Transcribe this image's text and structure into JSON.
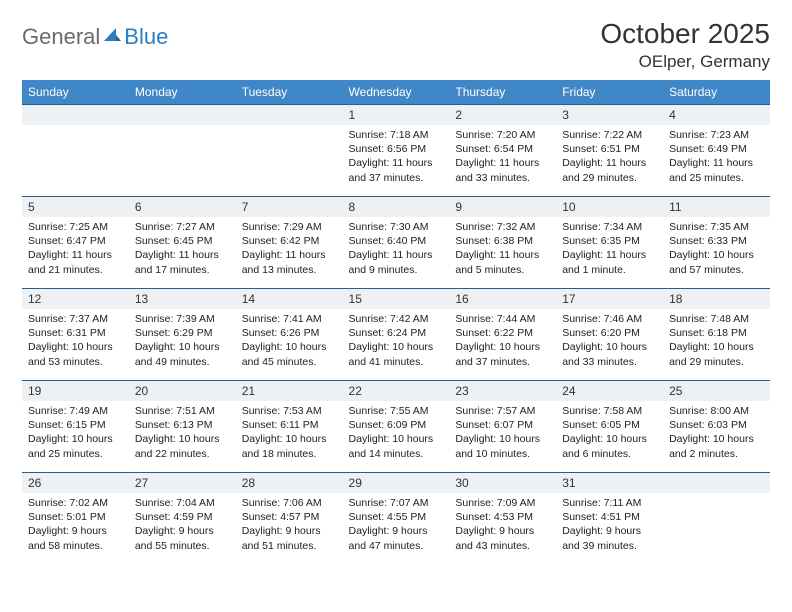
{
  "logo": {
    "text1": "General",
    "text2": "Blue"
  },
  "title": "October 2025",
  "location": "OElper, Germany",
  "colors": {
    "header_bg": "#3f87c7",
    "header_text": "#ffffff",
    "cell_border": "#2a5d8f",
    "daynum_bg": "#eef1f4",
    "title_text": "#333333",
    "logo_gray": "#6b6b6b",
    "logo_blue": "#2a7fc4"
  },
  "day_names": [
    "Sunday",
    "Monday",
    "Tuesday",
    "Wednesday",
    "Thursday",
    "Friday",
    "Saturday"
  ],
  "weeks": [
    [
      {
        "n": "",
        "sr": "",
        "ss": "",
        "dl": ""
      },
      {
        "n": "",
        "sr": "",
        "ss": "",
        "dl": ""
      },
      {
        "n": "",
        "sr": "",
        "ss": "",
        "dl": ""
      },
      {
        "n": "1",
        "sr": "Sunrise: 7:18 AM",
        "ss": "Sunset: 6:56 PM",
        "dl": "Daylight: 11 hours and 37 minutes."
      },
      {
        "n": "2",
        "sr": "Sunrise: 7:20 AM",
        "ss": "Sunset: 6:54 PM",
        "dl": "Daylight: 11 hours and 33 minutes."
      },
      {
        "n": "3",
        "sr": "Sunrise: 7:22 AM",
        "ss": "Sunset: 6:51 PM",
        "dl": "Daylight: 11 hours and 29 minutes."
      },
      {
        "n": "4",
        "sr": "Sunrise: 7:23 AM",
        "ss": "Sunset: 6:49 PM",
        "dl": "Daylight: 11 hours and 25 minutes."
      }
    ],
    [
      {
        "n": "5",
        "sr": "Sunrise: 7:25 AM",
        "ss": "Sunset: 6:47 PM",
        "dl": "Daylight: 11 hours and 21 minutes."
      },
      {
        "n": "6",
        "sr": "Sunrise: 7:27 AM",
        "ss": "Sunset: 6:45 PM",
        "dl": "Daylight: 11 hours and 17 minutes."
      },
      {
        "n": "7",
        "sr": "Sunrise: 7:29 AM",
        "ss": "Sunset: 6:42 PM",
        "dl": "Daylight: 11 hours and 13 minutes."
      },
      {
        "n": "8",
        "sr": "Sunrise: 7:30 AM",
        "ss": "Sunset: 6:40 PM",
        "dl": "Daylight: 11 hours and 9 minutes."
      },
      {
        "n": "9",
        "sr": "Sunrise: 7:32 AM",
        "ss": "Sunset: 6:38 PM",
        "dl": "Daylight: 11 hours and 5 minutes."
      },
      {
        "n": "10",
        "sr": "Sunrise: 7:34 AM",
        "ss": "Sunset: 6:35 PM",
        "dl": "Daylight: 11 hours and 1 minute."
      },
      {
        "n": "11",
        "sr": "Sunrise: 7:35 AM",
        "ss": "Sunset: 6:33 PM",
        "dl": "Daylight: 10 hours and 57 minutes."
      }
    ],
    [
      {
        "n": "12",
        "sr": "Sunrise: 7:37 AM",
        "ss": "Sunset: 6:31 PM",
        "dl": "Daylight: 10 hours and 53 minutes."
      },
      {
        "n": "13",
        "sr": "Sunrise: 7:39 AM",
        "ss": "Sunset: 6:29 PM",
        "dl": "Daylight: 10 hours and 49 minutes."
      },
      {
        "n": "14",
        "sr": "Sunrise: 7:41 AM",
        "ss": "Sunset: 6:26 PM",
        "dl": "Daylight: 10 hours and 45 minutes."
      },
      {
        "n": "15",
        "sr": "Sunrise: 7:42 AM",
        "ss": "Sunset: 6:24 PM",
        "dl": "Daylight: 10 hours and 41 minutes."
      },
      {
        "n": "16",
        "sr": "Sunrise: 7:44 AM",
        "ss": "Sunset: 6:22 PM",
        "dl": "Daylight: 10 hours and 37 minutes."
      },
      {
        "n": "17",
        "sr": "Sunrise: 7:46 AM",
        "ss": "Sunset: 6:20 PM",
        "dl": "Daylight: 10 hours and 33 minutes."
      },
      {
        "n": "18",
        "sr": "Sunrise: 7:48 AM",
        "ss": "Sunset: 6:18 PM",
        "dl": "Daylight: 10 hours and 29 minutes."
      }
    ],
    [
      {
        "n": "19",
        "sr": "Sunrise: 7:49 AM",
        "ss": "Sunset: 6:15 PM",
        "dl": "Daylight: 10 hours and 25 minutes."
      },
      {
        "n": "20",
        "sr": "Sunrise: 7:51 AM",
        "ss": "Sunset: 6:13 PM",
        "dl": "Daylight: 10 hours and 22 minutes."
      },
      {
        "n": "21",
        "sr": "Sunrise: 7:53 AM",
        "ss": "Sunset: 6:11 PM",
        "dl": "Daylight: 10 hours and 18 minutes."
      },
      {
        "n": "22",
        "sr": "Sunrise: 7:55 AM",
        "ss": "Sunset: 6:09 PM",
        "dl": "Daylight: 10 hours and 14 minutes."
      },
      {
        "n": "23",
        "sr": "Sunrise: 7:57 AM",
        "ss": "Sunset: 6:07 PM",
        "dl": "Daylight: 10 hours and 10 minutes."
      },
      {
        "n": "24",
        "sr": "Sunrise: 7:58 AM",
        "ss": "Sunset: 6:05 PM",
        "dl": "Daylight: 10 hours and 6 minutes."
      },
      {
        "n": "25",
        "sr": "Sunrise: 8:00 AM",
        "ss": "Sunset: 6:03 PM",
        "dl": "Daylight: 10 hours and 2 minutes."
      }
    ],
    [
      {
        "n": "26",
        "sr": "Sunrise: 7:02 AM",
        "ss": "Sunset: 5:01 PM",
        "dl": "Daylight: 9 hours and 58 minutes."
      },
      {
        "n": "27",
        "sr": "Sunrise: 7:04 AM",
        "ss": "Sunset: 4:59 PM",
        "dl": "Daylight: 9 hours and 55 minutes."
      },
      {
        "n": "28",
        "sr": "Sunrise: 7:06 AM",
        "ss": "Sunset: 4:57 PM",
        "dl": "Daylight: 9 hours and 51 minutes."
      },
      {
        "n": "29",
        "sr": "Sunrise: 7:07 AM",
        "ss": "Sunset: 4:55 PM",
        "dl": "Daylight: 9 hours and 47 minutes."
      },
      {
        "n": "30",
        "sr": "Sunrise: 7:09 AM",
        "ss": "Sunset: 4:53 PM",
        "dl": "Daylight: 9 hours and 43 minutes."
      },
      {
        "n": "31",
        "sr": "Sunrise: 7:11 AM",
        "ss": "Sunset: 4:51 PM",
        "dl": "Daylight: 9 hours and 39 minutes."
      },
      {
        "n": "",
        "sr": "",
        "ss": "",
        "dl": ""
      }
    ]
  ]
}
